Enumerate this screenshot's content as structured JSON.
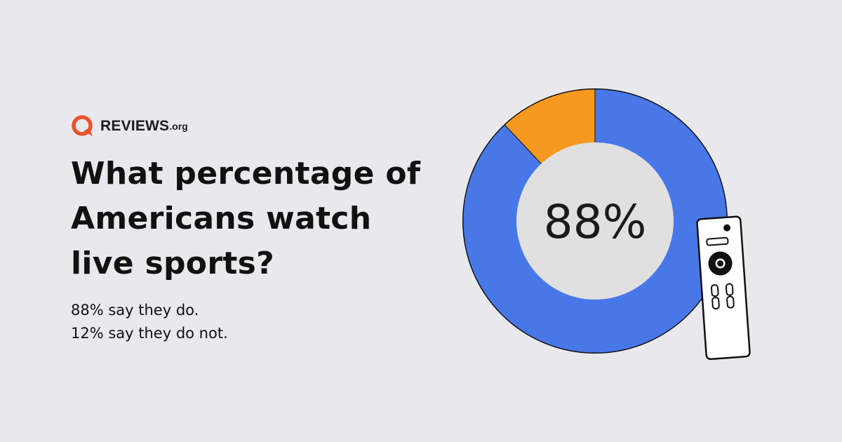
{
  "brand": {
    "name": "REVIEWS",
    "suffix": ".org",
    "accent_color": "#e8542b",
    "logo_icon": "speech-bubble-q-icon"
  },
  "headline": {
    "lines": [
      "What percentage of",
      "Americans watch",
      "live sports?"
    ]
  },
  "subtext": {
    "lines": [
      "88% say they do.",
      "12% say they do not."
    ]
  },
  "chart_data": {
    "type": "pie",
    "variant": "donut",
    "categories": [
      "say they do",
      "say they do not"
    ],
    "values": [
      88,
      12
    ],
    "colors": [
      "#4878e8",
      "#f7981f"
    ],
    "center_label": "88%",
    "center_fill": "#e0e0e0",
    "title": ""
  },
  "decoration": {
    "remote_icon": "tv-remote-icon"
  }
}
